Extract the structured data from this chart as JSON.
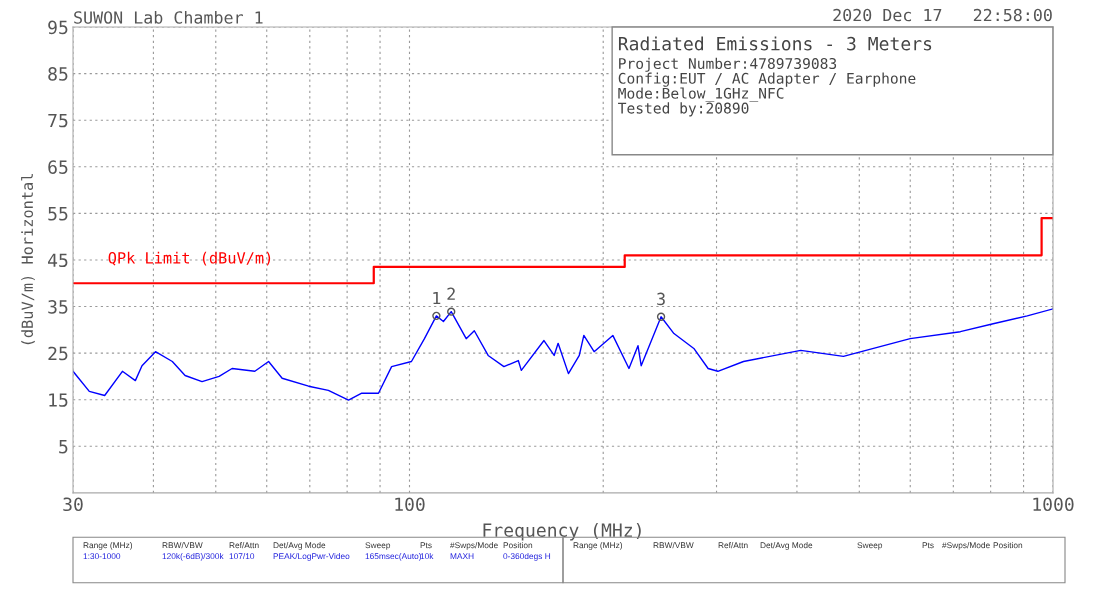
{
  "chart_data": {
    "type": "line",
    "title": "SUWON Lab Chamber 1",
    "xlabel": "Frequency (MHz)",
    "ylabel": "(dBuV/m) Horizontal",
    "log": "x",
    "grid": true,
    "legend": false,
    "xlim": [
      30,
      1000
    ],
    "xticks": [
      30,
      {
        "value": 40,
        "label": null
      },
      {
        "value": 50,
        "label": null
      },
      {
        "value": 60,
        "label": null
      },
      {
        "value": 70,
        "label": null
      },
      {
        "value": 80,
        "label": null
      },
      {
        "value": 90,
        "label": null
      },
      100,
      {
        "value": 200,
        "label": null
      },
      {
        "value": 300,
        "label": null
      },
      {
        "value": 400,
        "label": null
      },
      {
        "value": 500,
        "label": null
      },
      {
        "value": 600,
        "label": null
      },
      {
        "value": 700,
        "label": null
      },
      {
        "value": 800,
        "label": null
      },
      {
        "value": 900,
        "label": null
      },
      1000
    ],
    "ylim": [
      -5,
      95
    ],
    "yticks": [
      5,
      15,
      25,
      35,
      45,
      55,
      65,
      75,
      85,
      95
    ],
    "series": [
      {
        "color": "#0000ff",
        "x": [
          30,
          31.8,
          33.6,
          35.8,
          37.5,
          38.4,
          40.3,
          42.8,
          44.8,
          47.6,
          50.6,
          53,
          57.5,
          60.4,
          63.4,
          69.7,
          74.8,
          80.4,
          84.3,
          89.5,
          93.8,
          100.7,
          105.5,
          110.1,
          112.9,
          116.1,
          122.5,
          126.1,
          132.5,
          140.2,
          147.6,
          149.2,
          161.8,
          167.8,
          170.2,
          176.6,
          183.6,
          186.6,
          193.6,
          207,
          219.3,
          226.5,
          229.1,
          246,
          257.6,
          276.6,
          291.1,
          301.4,
          330.4,
          405.5,
          472.4,
          599.8,
          717.8,
          807.2,
          912,
          1000
        ],
        "values": [
          21.1,
          16.8,
          15.9,
          21.1,
          19.1,
          22.3,
          25.3,
          23.2,
          20.2,
          18.9,
          20.0,
          21.7,
          21.1,
          23.2,
          19.6,
          17.9,
          17.0,
          14.9,
          16.4,
          16.4,
          22.1,
          23.2,
          28.1,
          33.0,
          31.8,
          33.9,
          28.1,
          29.8,
          24.5,
          22.1,
          23.4,
          21.3,
          27.7,
          24.5,
          27.1,
          20.6,
          24.5,
          28.8,
          25.3,
          28.8,
          21.7,
          26.6,
          22.3,
          32.8,
          29.2,
          26.0,
          21.7,
          21.1,
          23.2,
          25.6,
          24.3,
          28.1,
          29.6,
          31.3,
          33.0,
          34.5
        ]
      },
      {
        "type": "step",
        "name": "QPk Limit (dBuV/m)",
        "color": "#ff0000",
        "x": [
          30,
          88,
          216,
          960,
          1000
        ],
        "values": [
          40,
          43.5,
          46,
          54,
          54
        ]
      }
    ],
    "annotations": [
      {
        "text": "1",
        "x": 110.1,
        "y": 33.0
      },
      {
        "text": "2",
        "x": 116.1,
        "y": 33.9
      },
      {
        "text": "3",
        "x": 246,
        "y": 32.8
      },
      "2020 Dec 17   22:58:00",
      "Radiated Emissions - 3 Meters",
      "Project Number:4789739083",
      "Config:EUT / AC Adapter / Earphone",
      "Mode:Below_1GHz_NFC",
      "Tested by:20890",
      "Range (MHz)",
      "RBW/VBW",
      "Ref/Attn",
      "Det/Avg Mode",
      "Sweep",
      "Pts",
      "#Swps/Mode",
      "Position",
      "1:30-1000",
      "120k(-6dB)/300k",
      "107/10",
      "PEAK/LogPwr-Video",
      "165msec(Auto)",
      "10k",
      "MAXH",
      "0-360degs H",
      "Range (MHz)",
      "RBW/VBW",
      "Ref/Attn",
      "Det/Avg Mode",
      "Sweep",
      "Pts",
      "#Swps/Mode",
      "Position"
    ]
  }
}
